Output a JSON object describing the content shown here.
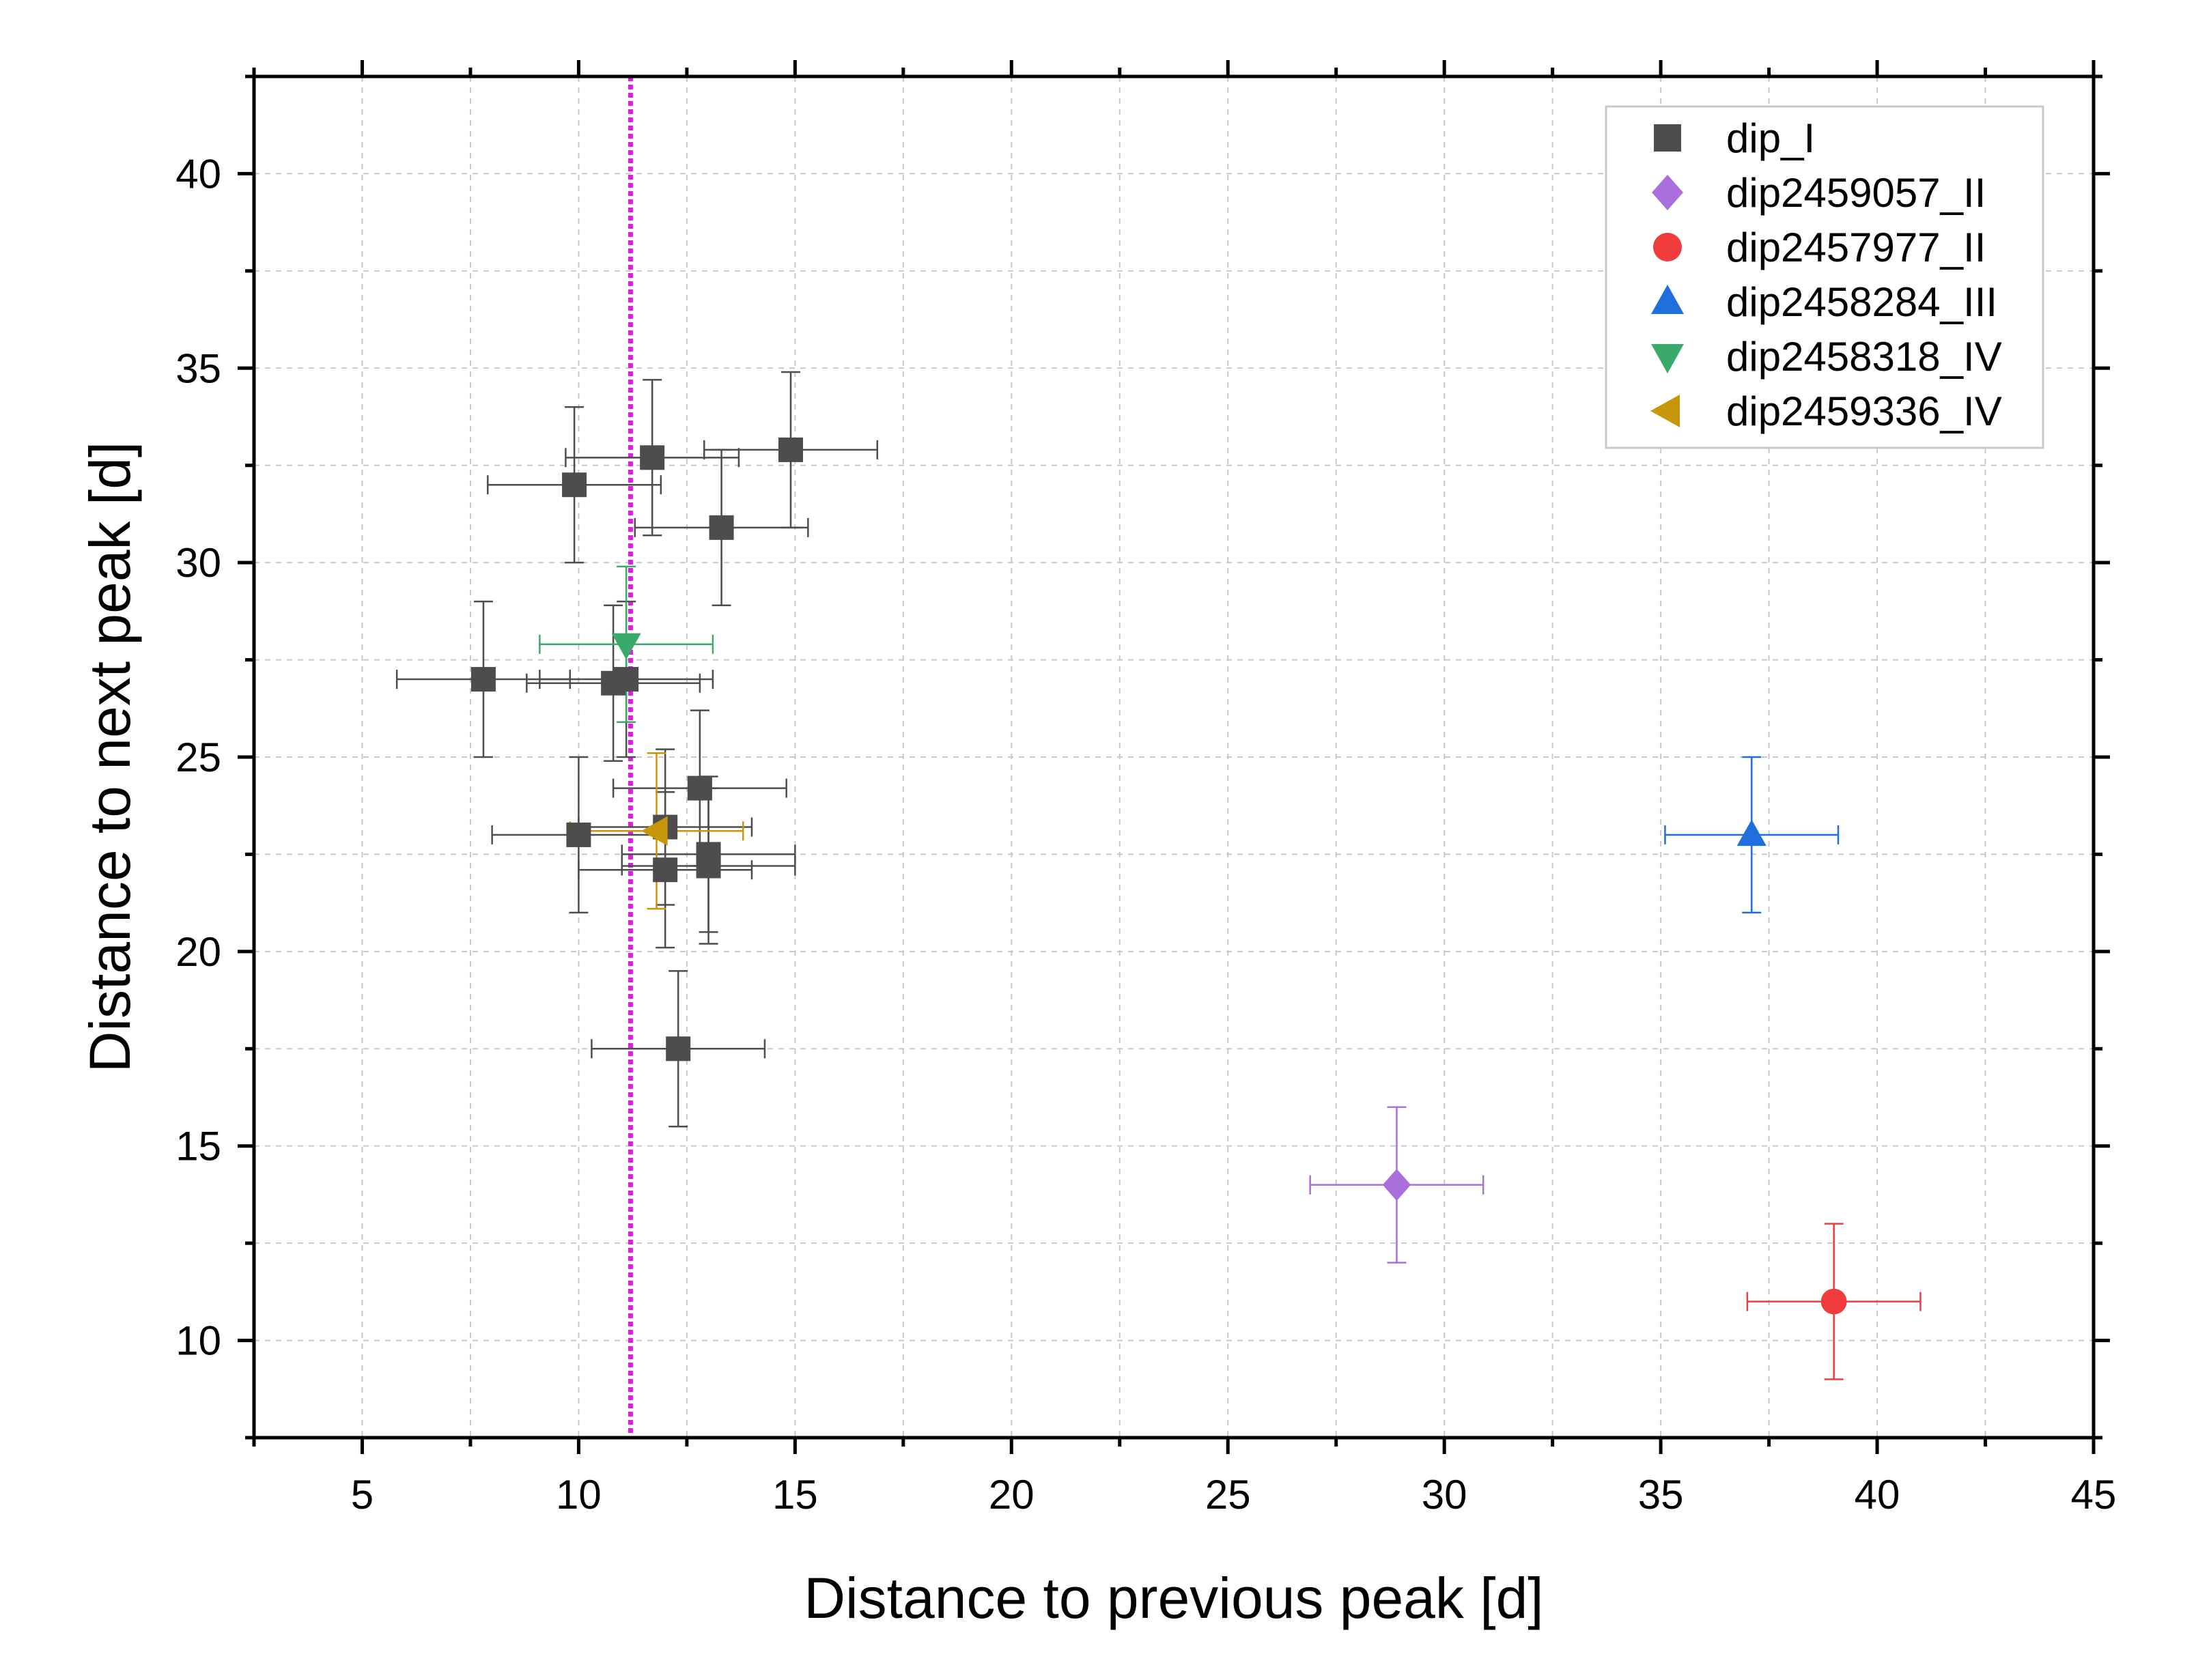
{
  "chart_data": {
    "type": "scatter",
    "title": "",
    "xlabel": "Distance to previous peak [d]",
    "ylabel": "Distance to next peak [d]",
    "xlim": [
      2.5,
      45
    ],
    "ylim": [
      7.5,
      42.5
    ],
    "xticks": [
      "5",
      "10",
      "15",
      "20",
      "25",
      "30",
      "35",
      "40",
      "45"
    ],
    "yticks": [
      "10",
      "15",
      "20",
      "25",
      "30",
      "35",
      "40"
    ],
    "grid": true,
    "legend_position": "top-right",
    "vline": {
      "x": 11.2,
      "color": "#e020e0",
      "style": "dotted"
    },
    "series": [
      {
        "name": "dip_I",
        "marker": "square",
        "color": "#4d4d4d",
        "points": [
          {
            "x": 9.9,
            "y": 32.0,
            "xerr": 2.0,
            "yerr": 2.0
          },
          {
            "x": 11.7,
            "y": 32.7,
            "xerr": 2.0,
            "yerr": 2.0
          },
          {
            "x": 14.9,
            "y": 32.9,
            "xerr": 2.0,
            "yerr": 2.0
          },
          {
            "x": 13.3,
            "y": 30.9,
            "xerr": 2.0,
            "yerr": 2.0
          },
          {
            "x": 7.8,
            "y": 27.0,
            "xerr": 2.0,
            "yerr": 2.0
          },
          {
            "x": 10.8,
            "y": 26.9,
            "xerr": 2.0,
            "yerr": 2.0
          },
          {
            "x": 11.1,
            "y": 27.0,
            "xerr": 2.0,
            "yerr": 2.0
          },
          {
            "x": 12.8,
            "y": 24.2,
            "xerr": 2.0,
            "yerr": 2.0
          },
          {
            "x": 10.0,
            "y": 23.0,
            "xerr": 2.0,
            "yerr": 2.0
          },
          {
            "x": 12.0,
            "y": 23.2,
            "xerr": 2.0,
            "yerr": 2.0
          },
          {
            "x": 12.0,
            "y": 22.1,
            "xerr": 2.0,
            "yerr": 2.0
          },
          {
            "x": 13.0,
            "y": 22.5,
            "xerr": 2.0,
            "yerr": 2.0
          },
          {
            "x": 13.0,
            "y": 22.2,
            "xerr": 2.0,
            "yerr": 2.0
          },
          {
            "x": 12.3,
            "y": 17.5,
            "xerr": 2.0,
            "yerr": 2.0
          }
        ]
      },
      {
        "name": "dip2459057_II",
        "marker": "diamond",
        "color": "#a970dd",
        "points": [
          {
            "x": 28.9,
            "y": 14.0,
            "xerr": 2.0,
            "yerr": 2.0
          }
        ]
      },
      {
        "name": "dip2457977_II",
        "marker": "circle",
        "color": "#f03c3c",
        "points": [
          {
            "x": 39.0,
            "y": 11.0,
            "xerr": 2.0,
            "yerr": 2.0
          }
        ]
      },
      {
        "name": "dip2458284_III",
        "marker": "triangle-up",
        "color": "#1e6fdc",
        "points": [
          {
            "x": 37.1,
            "y": 23.0,
            "xerr": 2.0,
            "yerr": 2.0
          }
        ]
      },
      {
        "name": "dip2458318_IV",
        "marker": "triangle-down",
        "color": "#3aaa6a",
        "points": [
          {
            "x": 11.1,
            "y": 27.9,
            "xerr": 2.0,
            "yerr": 2.0
          }
        ]
      },
      {
        "name": "dip2459336_IV",
        "marker": "triangle-left",
        "color": "#c8960a",
        "points": [
          {
            "x": 11.8,
            "y": 23.1,
            "xerr": 2.0,
            "yerr": 2.0
          }
        ]
      }
    ]
  }
}
